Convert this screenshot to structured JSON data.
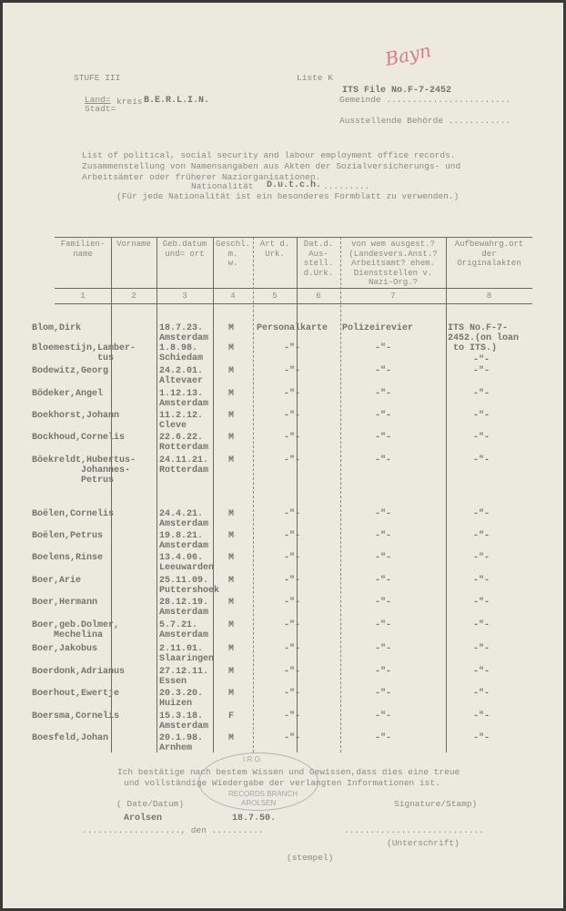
{
  "header": {
    "stufe": "STUFE III",
    "liste": "Liste K",
    "its_file": "ITS File No.F-7-2452",
    "land_label": "Land=",
    "stadt_label": "Stadt=",
    "kreis_label": "kreis",
    "kreis_value": "B.E.R.L.I.N.",
    "gemeinde_label": "Gemeinde ........................",
    "behoerde_label": "Ausstellende Behörde ............",
    "signature_mark": "Bayn"
  },
  "intro": {
    "line1": "List of political, social security and labour employment office records.",
    "line2": "Zusammenstellung von Namensangaben aus Akten der Sozialversicherungs- und",
    "line3": "Arbeitsämter oder früherer Naziorganisationen."
  },
  "nationality": {
    "label": "Nationalität",
    "value": "D.u.t.c.h.",
    "dots": ".........",
    "note": "(Für jede Nationalität ist ein besonderes Formblatt zu verwenden.)"
  },
  "table": {
    "columns": [
      {
        "label": "Familien-\nname",
        "num": "1"
      },
      {
        "label": "Vorname",
        "num": "2"
      },
      {
        "label": "Geb.datum\nund= ort",
        "num": "3"
      },
      {
        "label": "Geschl.\nm.\nw.",
        "num": "4"
      },
      {
        "label": "Art d.\nUrk.",
        "num": "5"
      },
      {
        "label": "Dat.d.\nAus-\nstell.\nd.Urk.",
        "num": "6"
      },
      {
        "label": "von wem ausgest.?\n(Landesvers.Anst.?\nArbeitsamt? ehem.\nDienststellen v.\nNazi-Org.?",
        "num": "7"
      },
      {
        "label": "Aufbewahrg.ort\nder\nOriginalakten",
        "num": "8"
      }
    ],
    "rows": [
      {
        "name": "Blom,Dirk",
        "date": "18.7.23.",
        "place": "Amsterdam",
        "sex": "M",
        "doc": "Personalkarte",
        "issuer": "Polizeirevier",
        "storage": "ITS No.F-7-\n2452.(on loan\n to ITS.)"
      },
      {
        "name": "Bloemestijn,Lamber-\n            tus",
        "date": "1.8.98.",
        "place": "Schiedam",
        "sex": "M",
        "doc": "-\"-",
        "issuer": "-\"-",
        "storage": "-\"-"
      },
      {
        "name": "Bodewitz,Georg",
        "date": "24.2.01.",
        "place": "Altevaer",
        "sex": "M",
        "doc": "-\"-",
        "issuer": "-\"-",
        "storage": "-\"-"
      },
      {
        "name": "Bödeker,Angel",
        "date": "1.12.13.",
        "place": "Amsterdam",
        "sex": "M",
        "doc": "-\"-",
        "issuer": "-\"-",
        "storage": "-\"-"
      },
      {
        "name": "Boekhorst,Johann",
        "date": "11.2.12.",
        "place": "Cleve",
        "sex": "M",
        "doc": "-\"-",
        "issuer": "-\"-",
        "storage": "-\"-"
      },
      {
        "name": "Bockhoud,Cornelis",
        "date": "22.6.22.",
        "place": "Rotterdam",
        "sex": "M",
        "doc": "-\"-",
        "issuer": "-\"-",
        "storage": "-\"-"
      },
      {
        "name": "Böekreldt,Hubertus-\n         Johannes-\n         Petrus",
        "date": "24.11.21.",
        "place": "Rotterdam",
        "sex": "M",
        "doc": "-\"-",
        "issuer": "-\"-",
        "storage": "-\"-"
      },
      {
        "name": "Boëlen,Cornelis",
        "date": "24.4.21.",
        "place": "Amsterdam",
        "sex": "M",
        "doc": "-\"-",
        "issuer": "-\"-",
        "storage": "-\"-"
      },
      {
        "name": "Boëlen,Petrus",
        "date": "19.8.21.",
        "place": "Amsterdam",
        "sex": "M",
        "doc": "-\"-",
        "issuer": "-\"-",
        "storage": "-\"-"
      },
      {
        "name": "Boelens,Rinse",
        "date": "13.4.06.",
        "place": "Leeuwarden",
        "sex": "M",
        "doc": "-\"-",
        "issuer": "-\"-",
        "storage": "-\"-"
      },
      {
        "name": "Boer,Arie",
        "date": "25.11.09.",
        "place": "Puttershoek",
        "sex": "M",
        "doc": "-\"-",
        "issuer": "-\"-",
        "storage": "-\"-"
      },
      {
        "name": "Boer,Hermann",
        "date": "28.12.19.",
        "place": "Amsterdam",
        "sex": "M",
        "doc": "-\"-",
        "issuer": "-\"-",
        "storage": "-\"-"
      },
      {
        "name": "Boer,geb.Dolmer,\n    Mechelina",
        "date": "5.7.21.",
        "place": "Amsterdam",
        "sex": "M",
        "doc": "-\"-",
        "issuer": "-\"-",
        "storage": "-\"-"
      },
      {
        "name": "Boer,Jakobus",
        "date": "2.11.01.",
        "place": "Slaaringen",
        "sex": "M",
        "doc": "-\"-",
        "issuer": "-\"-",
        "storage": "-\"-"
      },
      {
        "name": "Boerdonk,Adrianus",
        "date": "27.12.11.",
        "place": "Essen",
        "sex": "M",
        "doc": "-\"-",
        "issuer": "-\"-",
        "storage": "-\"-"
      },
      {
        "name": "Boerhout,Ewertje",
        "date": "20.3.20.",
        "place": "Huizen",
        "sex": "M",
        "doc": "-\"-",
        "issuer": "-\"-",
        "storage": "-\"-"
      },
      {
        "name": "Boersma,Cornelis",
        "date": "15.3.18.",
        "place": "Amsterdam",
        "sex": "F",
        "doc": "-\"-",
        "issuer": "-\"-",
        "storage": "-\"-"
      },
      {
        "name": "Boesfeld,Johan",
        "date": "20.1.98.",
        "place": "Arnhem",
        "sex": "M",
        "doc": "-\"-",
        "issuer": "-\"-",
        "storage": "-\"-"
      }
    ]
  },
  "footer": {
    "confirm1": "Ich bestätige nach bestem Wissen und Gewissen,dass dies eine treue",
    "confirm2": "und vollständige Wiedergabe der verlangten Informationen ist.",
    "date_label": "( Date/Datum)",
    "signature_label": "Signature/Stamp)",
    "place_value": "Arolsen",
    "date_value": "18.7.50.",
    "place_dots": "..................., den ..........",
    "sig_dots": "...........................",
    "untersch": "(Unterschrift)",
    "stempel": "(stempel)",
    "stamp_text": {
      "top": "I.R.O.",
      "mid": "RECORDS BRANCH",
      "bottom": "AROLSEN"
    }
  }
}
